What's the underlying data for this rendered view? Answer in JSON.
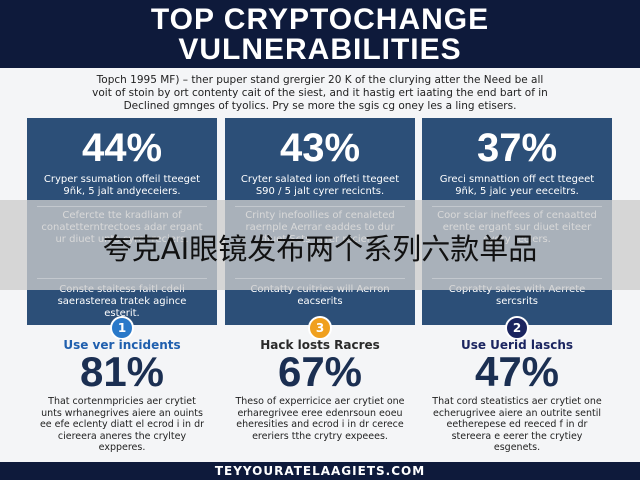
{
  "header": {
    "title_lines": [
      "TOP CRYPTOCHANGE",
      "VULNERABILITIES"
    ]
  },
  "intro": [
    "Topch 1995 MF) – ther puper stand grergier 20 K of the clurying atter the Need be all",
    "voit of stoin by ort contenty cait of the siest, and it hastig ert iaating the end bart of in",
    "Declined gmnges of tyolics. Pry se more the sgis cg oney les a ling etisers."
  ],
  "columns": [
    {
      "stat": "44%",
      "caption": "Cryper ssumation offeil tteeget 9ñk, 5 jalt andyeceiers.",
      "mid": "Cefercte tte kradliam of conatetterntrectoes adar ergant ur diuet unts cyrer reciers.",
      "lower": "Conste staitess faitl cdeli saerasterea tratek agince esterit.",
      "number": "1",
      "heading": "Use ver incidents",
      "stat2": "81%",
      "body": "That cortenmpricies aer crytiet unts wrhanegrives aiere an ouints ee efe eclenty diatt el ecrod i in dr ciereera aneres the cryltey expperes."
    },
    {
      "stat": "43%",
      "caption": "Cryter salated ion offeti ttegeet S90 / 5 jalt cyrer recicnts.",
      "mid": "Crinty inefoollies of cenaleted raernple Aerrar eaddes to dur diuet Scts cyrer reciers.",
      "lower": "Contatty cuitries will Aerron eacserits",
      "number": "3",
      "heading": "Hack losts Racres",
      "stat2": "67%",
      "body": "Theso of experricice aer crytiet one erharegrivee eree edenrsoun eoeu eheresities and ecrod i in dr cerece ereriers tthe crytry expeees."
    },
    {
      "stat": "37%",
      "caption": "Greci smnattion off ect ttegeet 9ñk, 5 jalc yeur eeceitrs.",
      "mid": "Coor sciar ineffees of cenaatted erente ergant sur diuet eiteer cyory reciers.",
      "lower": "Copratty sales with Aerrete sercsrits",
      "number": "2",
      "heading": "Use Uerid laschs",
      "stat2": "47%",
      "body": "That cord steatistics aer crytiet one echerugrivee aiere an outrite sentil eetherepese ed reeced f in dr stereera e eerer the crytiey esgenets."
    }
  ],
  "banner": "夸克AI眼镜发布两个系列六款单品",
  "footer": "TEYYOURATELAAGIETS.COM"
}
